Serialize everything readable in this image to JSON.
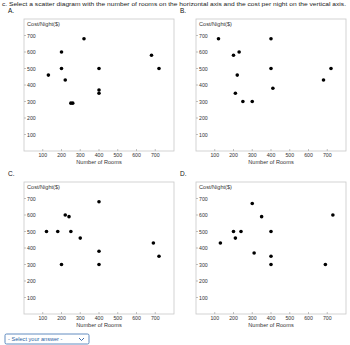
{
  "question": "c. Select a scatter diagram with the number of rooms on the horizontal axis and the cost per night on the vertical axis.",
  "answer_select": "- Select your answer -",
  "chart_data": [
    {
      "type": "scatter",
      "title": "A.",
      "x_label": "Number of Rooms",
      "y_label": "Cost/Night($)",
      "x": [
        130,
        200,
        200,
        220,
        250,
        260,
        320,
        400,
        400,
        400,
        680,
        720
      ],
      "values": [
        460,
        600,
        500,
        430,
        290,
        290,
        680,
        500,
        370,
        350,
        580,
        500
      ],
      "xlim": [
        0,
        800
      ],
      "ylim": [
        0,
        800
      ],
      "xticks": [
        100,
        200,
        300,
        400,
        500,
        600,
        700
      ],
      "yticks": [
        100,
        200,
        300,
        400,
        500,
        600,
        700
      ],
      "color": "#000000",
      "grid": false
    },
    {
      "type": "scatter",
      "title": "B.",
      "x_label": "Number of Rooms",
      "y_label": "Cost/Night($)",
      "x": [
        120,
        200,
        230,
        210,
        220,
        250,
        300,
        400,
        400,
        410,
        680,
        720
      ],
      "values": [
        680,
        580,
        600,
        350,
        460,
        300,
        300,
        680,
        500,
        380,
        430,
        500
      ],
      "xlim": [
        0,
        800
      ],
      "ylim": [
        0,
        800
      ],
      "xticks": [
        100,
        200,
        300,
        400,
        500,
        600,
        700
      ],
      "yticks": [
        100,
        200,
        300,
        400,
        500,
        600,
        700
      ],
      "color": "#000000",
      "grid": false
    },
    {
      "type": "scatter",
      "title": "C.",
      "x_label": "Number of Rooms",
      "y_label": "Cost/Night($)",
      "x": [
        120,
        180,
        200,
        220,
        240,
        250,
        300,
        400,
        400,
        400,
        690,
        720
      ],
      "values": [
        500,
        500,
        300,
        600,
        590,
        500,
        460,
        680,
        380,
        300,
        430,
        350
      ],
      "xlim": [
        0,
        800
      ],
      "ylim": [
        0,
        800
      ],
      "xticks": [
        100,
        200,
        300,
        400,
        500,
        600,
        700
      ],
      "yticks": [
        100,
        200,
        300,
        400,
        500,
        600,
        700
      ],
      "color": "#000000",
      "grid": false
    },
    {
      "type": "scatter",
      "title": "D.",
      "x_label": "Number of Rooms",
      "y_label": "Cost/Night($)",
      "x": [
        130,
        200,
        210,
        240,
        300,
        310,
        350,
        400,
        400,
        400,
        690,
        730
      ],
      "values": [
        430,
        500,
        460,
        500,
        670,
        370,
        590,
        500,
        350,
        300,
        300,
        600
      ],
      "xlim": [
        0,
        800
      ],
      "ylim": [
        0,
        800
      ],
      "xticks": [
        100,
        200,
        300,
        400,
        500,
        600,
        700
      ],
      "yticks": [
        100,
        200,
        300,
        400,
        500,
        600,
        700
      ],
      "color": "#000000",
      "grid": false
    }
  ]
}
